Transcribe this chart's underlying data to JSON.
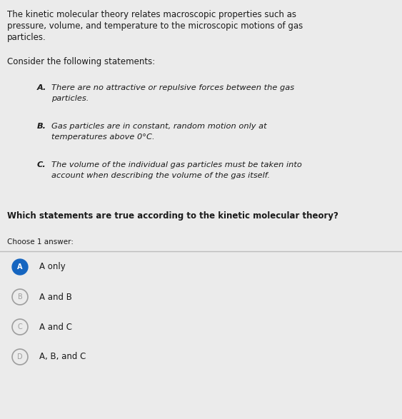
{
  "background_color": "#ebebeb",
  "intro_text_line1": "The kinetic molecular theory relates macroscopic properties such as",
  "intro_text_line2": "pressure, volume, and temperature to the microscopic motions of gas",
  "intro_text_line3": "particles.",
  "consider_text": "Consider the following statements:",
  "stmt_A_label": "A.",
  "stmt_A_line1": "There are no attractive or repulsive forces between the gas",
  "stmt_A_line2": "particles.",
  "stmt_B_label": "B.",
  "stmt_B_line1": "Gas particles are in constant, random motion only at",
  "stmt_B_line2": "temperatures above 0°C.",
  "stmt_C_label": "C.",
  "stmt_C_line1": "The volume of the individual gas particles must be taken into",
  "stmt_C_line2": "account when describing the volume of the gas itself.",
  "question_text": "Which statements are true according to the kinetic molecular theory?",
  "choose_text": "Choose 1 answer:",
  "choices": [
    "A only",
    "A and B",
    "A and C",
    "A, B, and C"
  ],
  "choice_labels": [
    "A",
    "B",
    "C",
    "D"
  ],
  "selected_index": 0,
  "selected_color": "#1565c0",
  "unselected_fill": "#ebebeb",
  "unselected_border": "#9e9e9e",
  "text_color": "#1a1a1a",
  "divider_color": "#bdbdbd",
  "font_size_body": 8.5,
  "font_size_stmt": 8.2,
  "font_size_question": 8.5,
  "font_size_choose": 7.5,
  "font_size_choices": 8.5,
  "font_size_circle": 7.0
}
